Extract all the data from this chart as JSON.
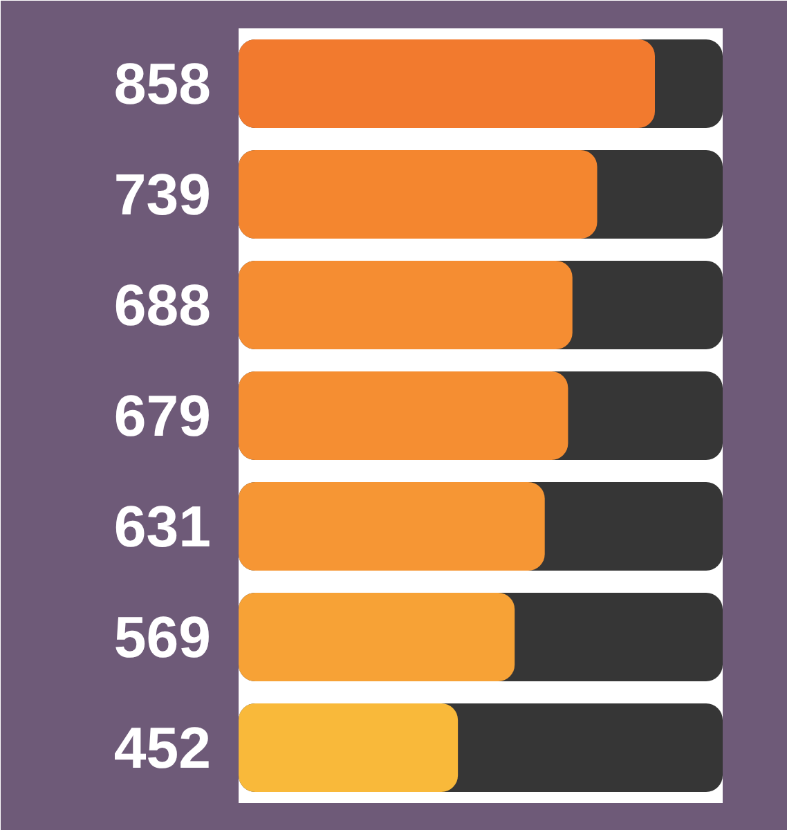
{
  "chart_data": {
    "type": "bar",
    "orientation": "horizontal",
    "categories": [
      null,
      null,
      null,
      null,
      null,
      null,
      null
    ],
    "values": [
      858,
      739,
      688,
      679,
      631,
      569,
      452
    ],
    "colors": [
      "#f27a2e",
      "#f4862f",
      "#f58d32",
      "#f58e32",
      "#f69634",
      "#f7a236",
      "#f9b93a"
    ],
    "data_labels": true,
    "tick_labels": false
  }
}
